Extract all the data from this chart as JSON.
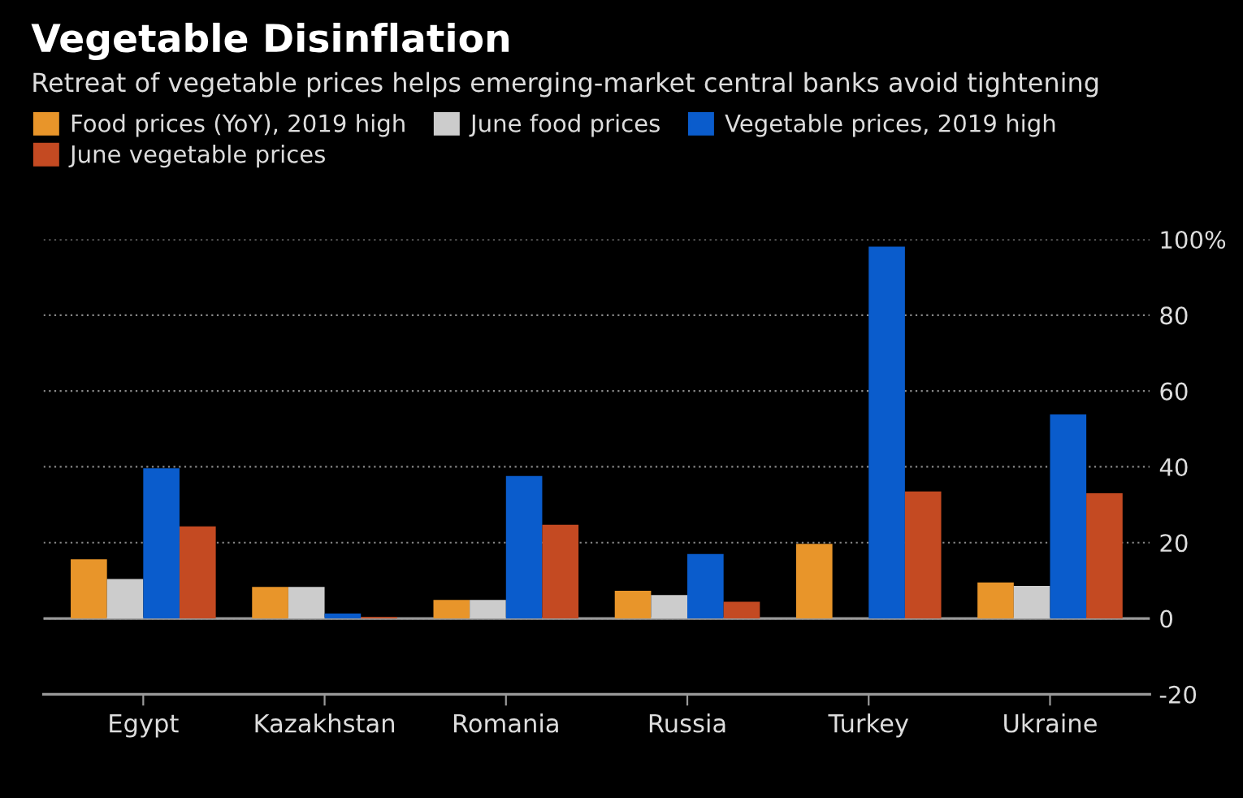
{
  "chart_data": {
    "type": "bar",
    "title": "Vegetable Disinflation",
    "subtitle": "Retreat of vegetable prices helps emerging-market central banks avoid tightening",
    "categories": [
      "Egypt",
      "Kazakhstan",
      "Romania",
      "Russia",
      "Turkey",
      "Ukraine"
    ],
    "series": [
      {
        "name": "Food prices (YoY), 2019 high",
        "color": "#e8952a",
        "values": [
          15.6,
          8.3,
          4.9,
          7.3,
          19.7,
          9.5
        ]
      },
      {
        "name": "June food prices",
        "color": "#cccccc",
        "values": [
          10.4,
          8.3,
          4.9,
          6.2,
          null,
          8.6
        ]
      },
      {
        "name": "Vegetable prices, 2019 high",
        "color": "#0a5ccc",
        "values": [
          39.6,
          1.3,
          37.6,
          17.0,
          98.1,
          53.8
        ]
      },
      {
        "name": "June vegetable prices",
        "color": "#c44a22",
        "values": [
          24.3,
          0.4,
          24.7,
          4.4,
          33.5,
          33.0
        ]
      }
    ],
    "ylim": [
      -20,
      100
    ],
    "yticks": [
      -20,
      0,
      20,
      40,
      60,
      80,
      {
        "value": 100,
        "label": "100%"
      }
    ],
    "ref_lines": [
      {
        "axis": "y",
        "value": 0,
        "color": "#9a9a9a"
      }
    ],
    "grid": "y",
    "legend": "top left"
  }
}
